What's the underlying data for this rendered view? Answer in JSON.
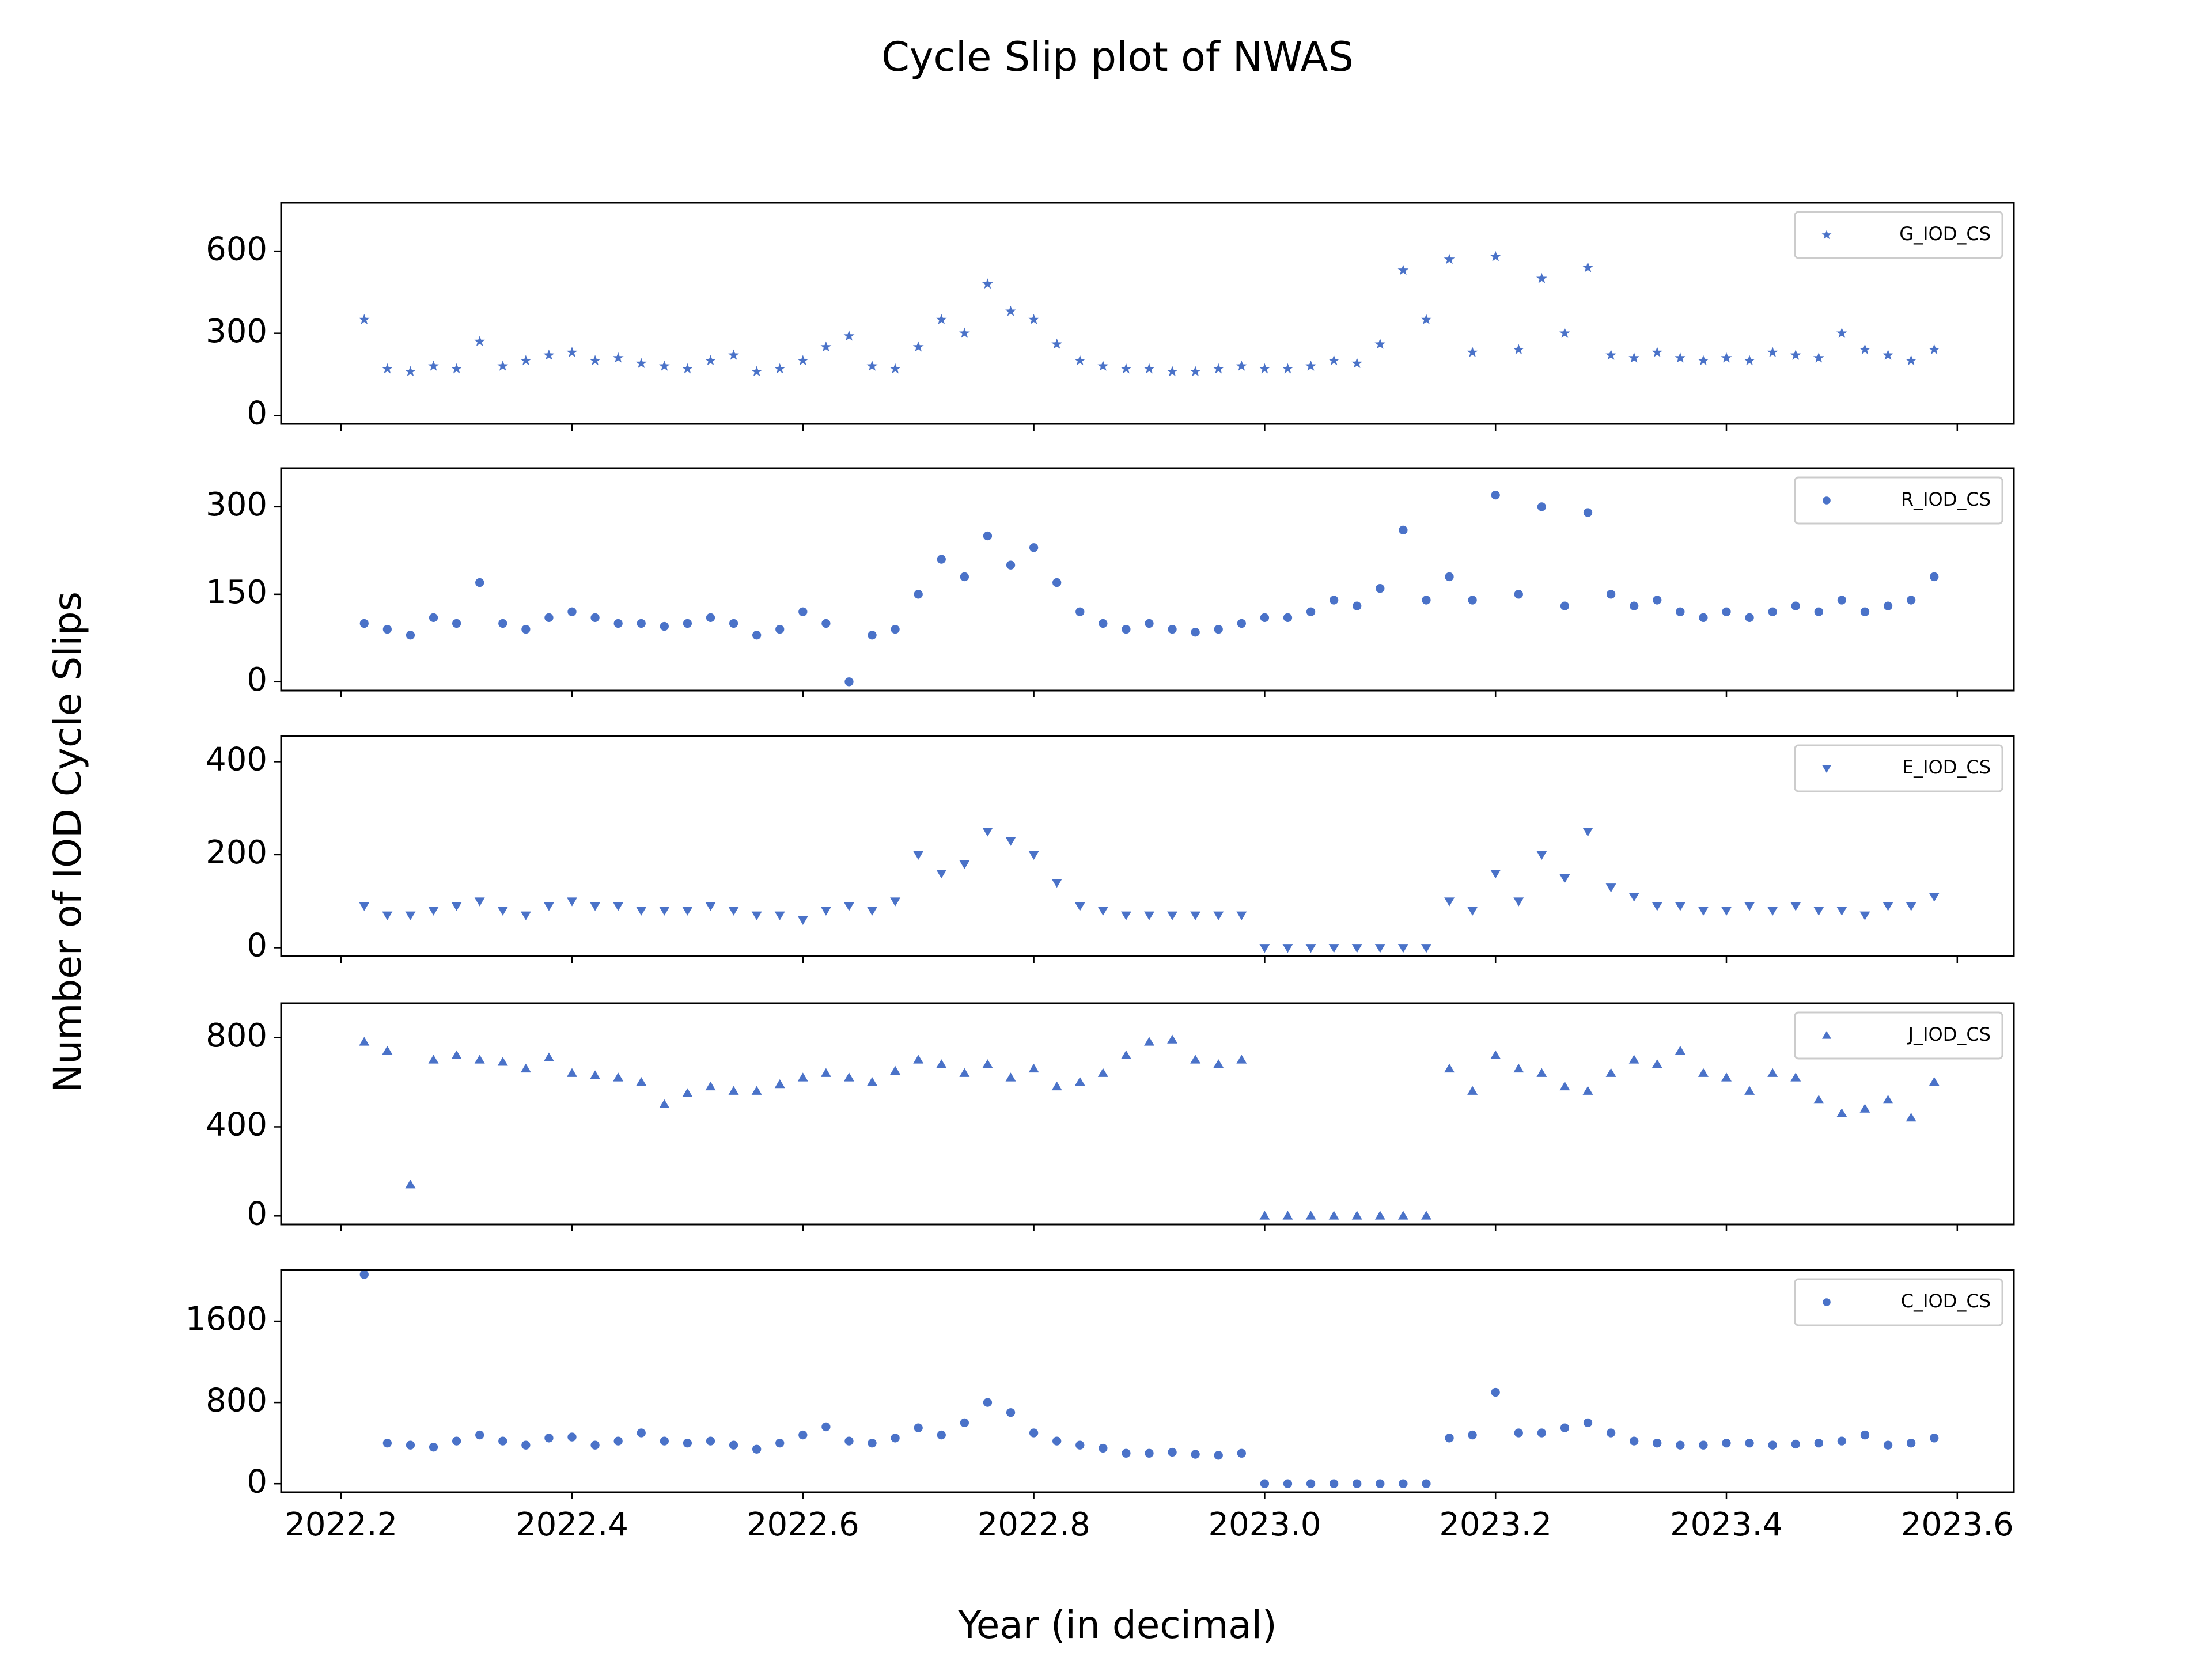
{
  "figure": {
    "title": "Cycle Slip plot of NWAS",
    "xlabel": "Year (in decimal)",
    "ylabel": "Number of IOD Cycle Slips"
  },
  "chart_data": [
    {
      "type": "scatter",
      "marker": "*",
      "legend": "upper right",
      "xlim": [
        2022.148,
        2023.649
      ],
      "ylim": [
        -31,
        777
      ],
      "yticks": [
        0,
        300,
        600
      ],
      "x": [
        2022.22,
        2022.24,
        2022.26,
        2022.28,
        2022.3,
        2022.32,
        2022.34,
        2022.36,
        2022.38,
        2022.4,
        2022.42,
        2022.44,
        2022.46,
        2022.48,
        2022.5,
        2022.52,
        2022.54,
        2022.56,
        2022.58,
        2022.6,
        2022.62,
        2022.64,
        2022.66,
        2022.68,
        2022.7,
        2022.72,
        2022.74,
        2022.76,
        2022.78,
        2022.8,
        2022.82,
        2022.84,
        2022.86,
        2022.88,
        2022.9,
        2022.92,
        2022.94,
        2022.96,
        2022.98,
        2023.0,
        2023.02,
        2023.04,
        2023.06,
        2023.08,
        2023.1,
        2023.12,
        2023.14,
        2023.16,
        2023.18,
        2023.2,
        2023.22,
        2023.24,
        2023.26,
        2023.28,
        2023.3,
        2023.32,
        2023.34,
        2023.36,
        2023.38,
        2023.4,
        2023.42,
        2023.44,
        2023.46,
        2023.48,
        2023.5,
        2023.52,
        2023.54,
        2023.56,
        2023.58
      ],
      "series": [
        {
          "name": "G_IOD_CS",
          "color": "#4a72c8",
          "values": [
            350,
            170,
            160,
            180,
            170,
            270,
            180,
            200,
            220,
            230,
            200,
            210,
            190,
            180,
            170,
            200,
            220,
            160,
            170,
            200,
            250,
            290,
            180,
            170,
            250,
            350,
            300,
            480,
            380,
            350,
            260,
            200,
            180,
            170,
            170,
            160,
            160,
            170,
            180,
            170,
            170,
            180,
            200,
            190,
            260,
            530,
            350,
            570,
            230,
            580,
            240,
            500,
            300,
            540,
            220,
            210,
            230,
            210,
            200,
            210,
            200,
            230,
            220,
            210,
            300,
            240,
            220,
            200,
            240
          ]
        }
      ]
    },
    {
      "type": "scatter",
      "marker": "o",
      "legend": "upper right",
      "xlim": [
        2022.148,
        2023.649
      ],
      "ylim": [
        -15,
        366
      ],
      "yticks": [
        0,
        150,
        300
      ],
      "x": [
        2022.22,
        2022.24,
        2022.26,
        2022.28,
        2022.3,
        2022.32,
        2022.34,
        2022.36,
        2022.38,
        2022.4,
        2022.42,
        2022.44,
        2022.46,
        2022.48,
        2022.5,
        2022.52,
        2022.54,
        2022.56,
        2022.58,
        2022.6,
        2022.62,
        2022.64,
        2022.66,
        2022.68,
        2022.7,
        2022.72,
        2022.74,
        2022.76,
        2022.78,
        2022.8,
        2022.82,
        2022.84,
        2022.86,
        2022.88,
        2022.9,
        2022.92,
        2022.94,
        2022.96,
        2022.98,
        2023.0,
        2023.02,
        2023.04,
        2023.06,
        2023.08,
        2023.1,
        2023.12,
        2023.14,
        2023.16,
        2023.18,
        2023.2,
        2023.22,
        2023.24,
        2023.26,
        2023.28,
        2023.3,
        2023.32,
        2023.34,
        2023.36,
        2023.38,
        2023.4,
        2023.42,
        2023.44,
        2023.46,
        2023.48,
        2023.5,
        2023.52,
        2023.54,
        2023.56,
        2023.58
      ],
      "series": [
        {
          "name": "R_IOD_CS",
          "color": "#4a72c8",
          "values": [
            100,
            90,
            80,
            110,
            100,
            170,
            100,
            90,
            110,
            120,
            110,
            100,
            100,
            95,
            100,
            110,
            100,
            80,
            90,
            120,
            100,
            0,
            80,
            90,
            150,
            210,
            180,
            250,
            200,
            230,
            170,
            120,
            100,
            90,
            100,
            90,
            85,
            90,
            100,
            110,
            110,
            120,
            140,
            130,
            160,
            260,
            140,
            180,
            140,
            320,
            150,
            300,
            130,
            290,
            150,
            130,
            140,
            120,
            110,
            120,
            110,
            120,
            130,
            120,
            140,
            120,
            130,
            140,
            180
          ]
        }
      ]
    },
    {
      "type": "scatter",
      "marker": "v",
      "legend": "upper right",
      "xlim": [
        2022.148,
        2023.649
      ],
      "ylim": [
        -18,
        455
      ],
      "yticks": [
        0,
        200,
        400
      ],
      "x": [
        2022.22,
        2022.24,
        2022.26,
        2022.28,
        2022.3,
        2022.32,
        2022.34,
        2022.36,
        2022.38,
        2022.4,
        2022.42,
        2022.44,
        2022.46,
        2022.48,
        2022.5,
        2022.52,
        2022.54,
        2022.56,
        2022.58,
        2022.6,
        2022.62,
        2022.64,
        2022.66,
        2022.68,
        2022.7,
        2022.72,
        2022.74,
        2022.76,
        2022.78,
        2022.8,
        2022.82,
        2022.84,
        2022.86,
        2022.88,
        2022.9,
        2022.92,
        2022.94,
        2022.96,
        2022.98,
        2023.0,
        2023.02,
        2023.04,
        2023.06,
        2023.08,
        2023.1,
        2023.12,
        2023.14,
        2023.16,
        2023.18,
        2023.2,
        2023.22,
        2023.24,
        2023.26,
        2023.28,
        2023.3,
        2023.32,
        2023.34,
        2023.36,
        2023.38,
        2023.4,
        2023.42,
        2023.44,
        2023.46,
        2023.48,
        2023.5,
        2023.52,
        2023.54,
        2023.56,
        2023.58
      ],
      "series": [
        {
          "name": "E_IOD_CS",
          "color": "#4a72c8",
          "values": [
            90,
            70,
            70,
            80,
            90,
            100,
            80,
            70,
            90,
            100,
            90,
            90,
            80,
            80,
            80,
            90,
            80,
            70,
            70,
            60,
            80,
            90,
            80,
            100,
            200,
            160,
            180,
            250,
            230,
            200,
            140,
            90,
            80,
            70,
            70,
            70,
            70,
            70,
            70,
            0,
            0,
            0,
            0,
            0,
            0,
            0,
            0,
            100,
            80,
            160,
            100,
            200,
            150,
            250,
            130,
            110,
            90,
            90,
            80,
            80,
            90,
            80,
            90,
            80,
            80,
            70,
            90,
            90,
            110
          ]
        }
      ]
    },
    {
      "type": "scatter",
      "marker": "^",
      "legend": "upper right",
      "xlim": [
        2022.148,
        2023.649
      ],
      "ylim": [
        -38,
        954
      ],
      "yticks": [
        0,
        400,
        800
      ],
      "x": [
        2022.22,
        2022.24,
        2022.26,
        2022.28,
        2022.3,
        2022.32,
        2022.34,
        2022.36,
        2022.38,
        2022.4,
        2022.42,
        2022.44,
        2022.46,
        2022.48,
        2022.5,
        2022.52,
        2022.54,
        2022.56,
        2022.58,
        2022.6,
        2022.62,
        2022.64,
        2022.66,
        2022.68,
        2022.7,
        2022.72,
        2022.74,
        2022.76,
        2022.78,
        2022.8,
        2022.82,
        2022.84,
        2022.86,
        2022.88,
        2022.9,
        2022.92,
        2022.94,
        2022.96,
        2022.98,
        2023.0,
        2023.02,
        2023.04,
        2023.06,
        2023.08,
        2023.1,
        2023.12,
        2023.14,
        2023.16,
        2023.18,
        2023.2,
        2023.22,
        2023.24,
        2023.26,
        2023.28,
        2023.3,
        2023.32,
        2023.34,
        2023.36,
        2023.38,
        2023.4,
        2023.42,
        2023.44,
        2023.46,
        2023.48,
        2023.5,
        2023.52,
        2023.54,
        2023.56,
        2023.58
      ],
      "series": [
        {
          "name": "J_IOD_CS",
          "color": "#4a72c8",
          "values": [
            780,
            740,
            140,
            700,
            720,
            700,
            690,
            660,
            710,
            640,
            630,
            620,
            600,
            500,
            550,
            580,
            560,
            560,
            590,
            620,
            640,
            620,
            600,
            650,
            700,
            680,
            640,
            680,
            620,
            660,
            580,
            600,
            640,
            720,
            780,
            790,
            700,
            680,
            700,
            0,
            0,
            0,
            0,
            0,
            0,
            0,
            0,
            660,
            560,
            720,
            660,
            640,
            580,
            560,
            640,
            700,
            680,
            740,
            640,
            620,
            560,
            640,
            620,
            520,
            460,
            480,
            520,
            440,
            600
          ]
        }
      ]
    },
    {
      "type": "scatter",
      "marker": "o",
      "legend": "upper right",
      "xlim": [
        2022.148,
        2023.649
      ],
      "ylim": [
        -84,
        2105
      ],
      "yticks": [
        0,
        800,
        1600
      ],
      "xticks": [
        2022.2,
        2022.4,
        2022.6,
        2022.8,
        {
          "value": 2023.0,
          "label": "2023.0"
        },
        2023.2,
        2023.4,
        2023.6
      ],
      "x": [
        2022.22,
        2022.24,
        2022.26,
        2022.28,
        2022.3,
        2022.32,
        2022.34,
        2022.36,
        2022.38,
        2022.4,
        2022.42,
        2022.44,
        2022.46,
        2022.48,
        2022.5,
        2022.52,
        2022.54,
        2022.56,
        2022.58,
        2022.6,
        2022.62,
        2022.64,
        2022.66,
        2022.68,
        2022.7,
        2022.72,
        2022.74,
        2022.76,
        2022.78,
        2022.8,
        2022.82,
        2022.84,
        2022.86,
        2022.88,
        2022.9,
        2022.92,
        2022.94,
        2022.96,
        2022.98,
        2023.0,
        2023.02,
        2023.04,
        2023.06,
        2023.08,
        2023.1,
        2023.12,
        2023.14,
        2023.16,
        2023.18,
        2023.2,
        2023.22,
        2023.24,
        2023.26,
        2023.28,
        2023.3,
        2023.32,
        2023.34,
        2023.36,
        2023.38,
        2023.4,
        2023.42,
        2023.44,
        2023.46,
        2023.48,
        2023.5,
        2023.52,
        2023.54,
        2023.56,
        2023.58
      ],
      "series": [
        {
          "name": "C_IOD_CS",
          "color": "#4a72c8",
          "values": [
            2060,
            400,
            380,
            360,
            420,
            480,
            420,
            380,
            450,
            460,
            380,
            420,
            500,
            420,
            400,
            420,
            380,
            340,
            400,
            480,
            560,
            420,
            400,
            450,
            550,
            480,
            600,
            800,
            700,
            500,
            420,
            380,
            350,
            300,
            300,
            310,
            290,
            280,
            300,
            0,
            0,
            0,
            0,
            0,
            0,
            0,
            0,
            450,
            480,
            900,
            500,
            500,
            550,
            600,
            500,
            420,
            400,
            380,
            380,
            400,
            400,
            380,
            390,
            400,
            420,
            480,
            380,
            400,
            450
          ]
        }
      ]
    }
  ]
}
